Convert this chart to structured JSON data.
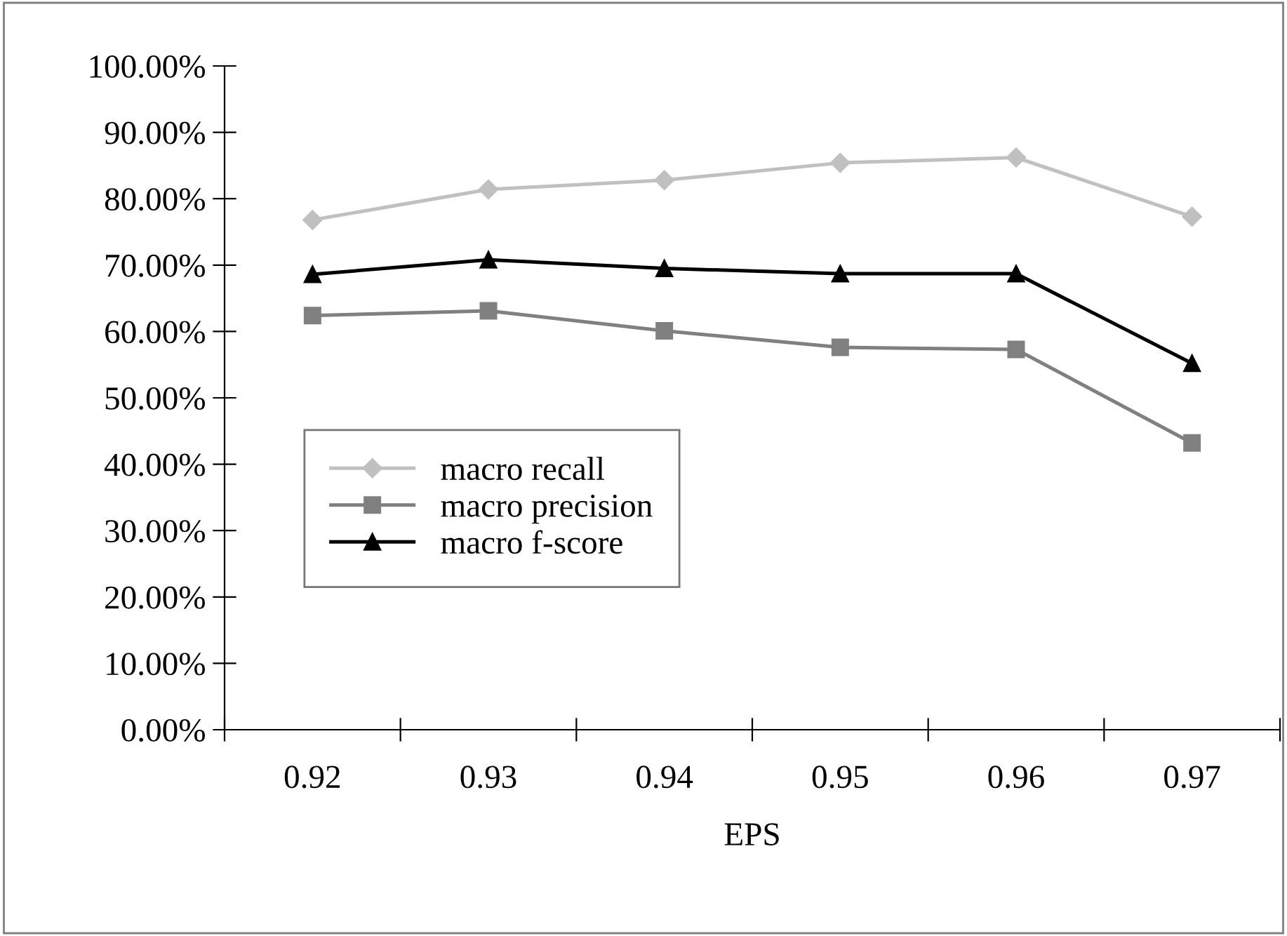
{
  "chart_data": {
    "type": "line",
    "xlabel": "EPS",
    "categories": [
      "0.92",
      "0.93",
      "0.94",
      "0.95",
      "0.96",
      "0.97"
    ],
    "series": [
      {
        "name": "macro recall",
        "color": "#c0c0c0",
        "marker": "diamond",
        "values": [
          76.8,
          81.4,
          82.8,
          85.4,
          86.2,
          77.3
        ]
      },
      {
        "name": "macro precision",
        "color": "#808080",
        "marker": "square",
        "values": [
          62.4,
          63.1,
          60.1,
          57.6,
          57.3,
          43.2
        ]
      },
      {
        "name": "macro f-score",
        "color": "#000000",
        "marker": "triangle",
        "values": [
          68.6,
          70.8,
          69.5,
          68.7,
          68.7,
          55.2
        ]
      }
    ],
    "ylim": [
      0,
      100
    ],
    "yticks": [
      {
        "value": 0,
        "label": "0.00%"
      },
      {
        "value": 10,
        "label": "10.00%"
      },
      {
        "value": 20,
        "label": "20.00%"
      },
      {
        "value": 30,
        "label": "30.00%"
      },
      {
        "value": 40,
        "label": "40.00%"
      },
      {
        "value": 50,
        "label": "50.00%"
      },
      {
        "value": 60,
        "label": "60.00%"
      },
      {
        "value": 70,
        "label": "70.00%"
      },
      {
        "value": 80,
        "label": "80.00%"
      },
      {
        "value": 90,
        "label": "90.00%"
      },
      {
        "value": 100,
        "label": "100.00%"
      }
    ],
    "grid": false,
    "legend": "lower left",
    "line_style": "solid"
  }
}
